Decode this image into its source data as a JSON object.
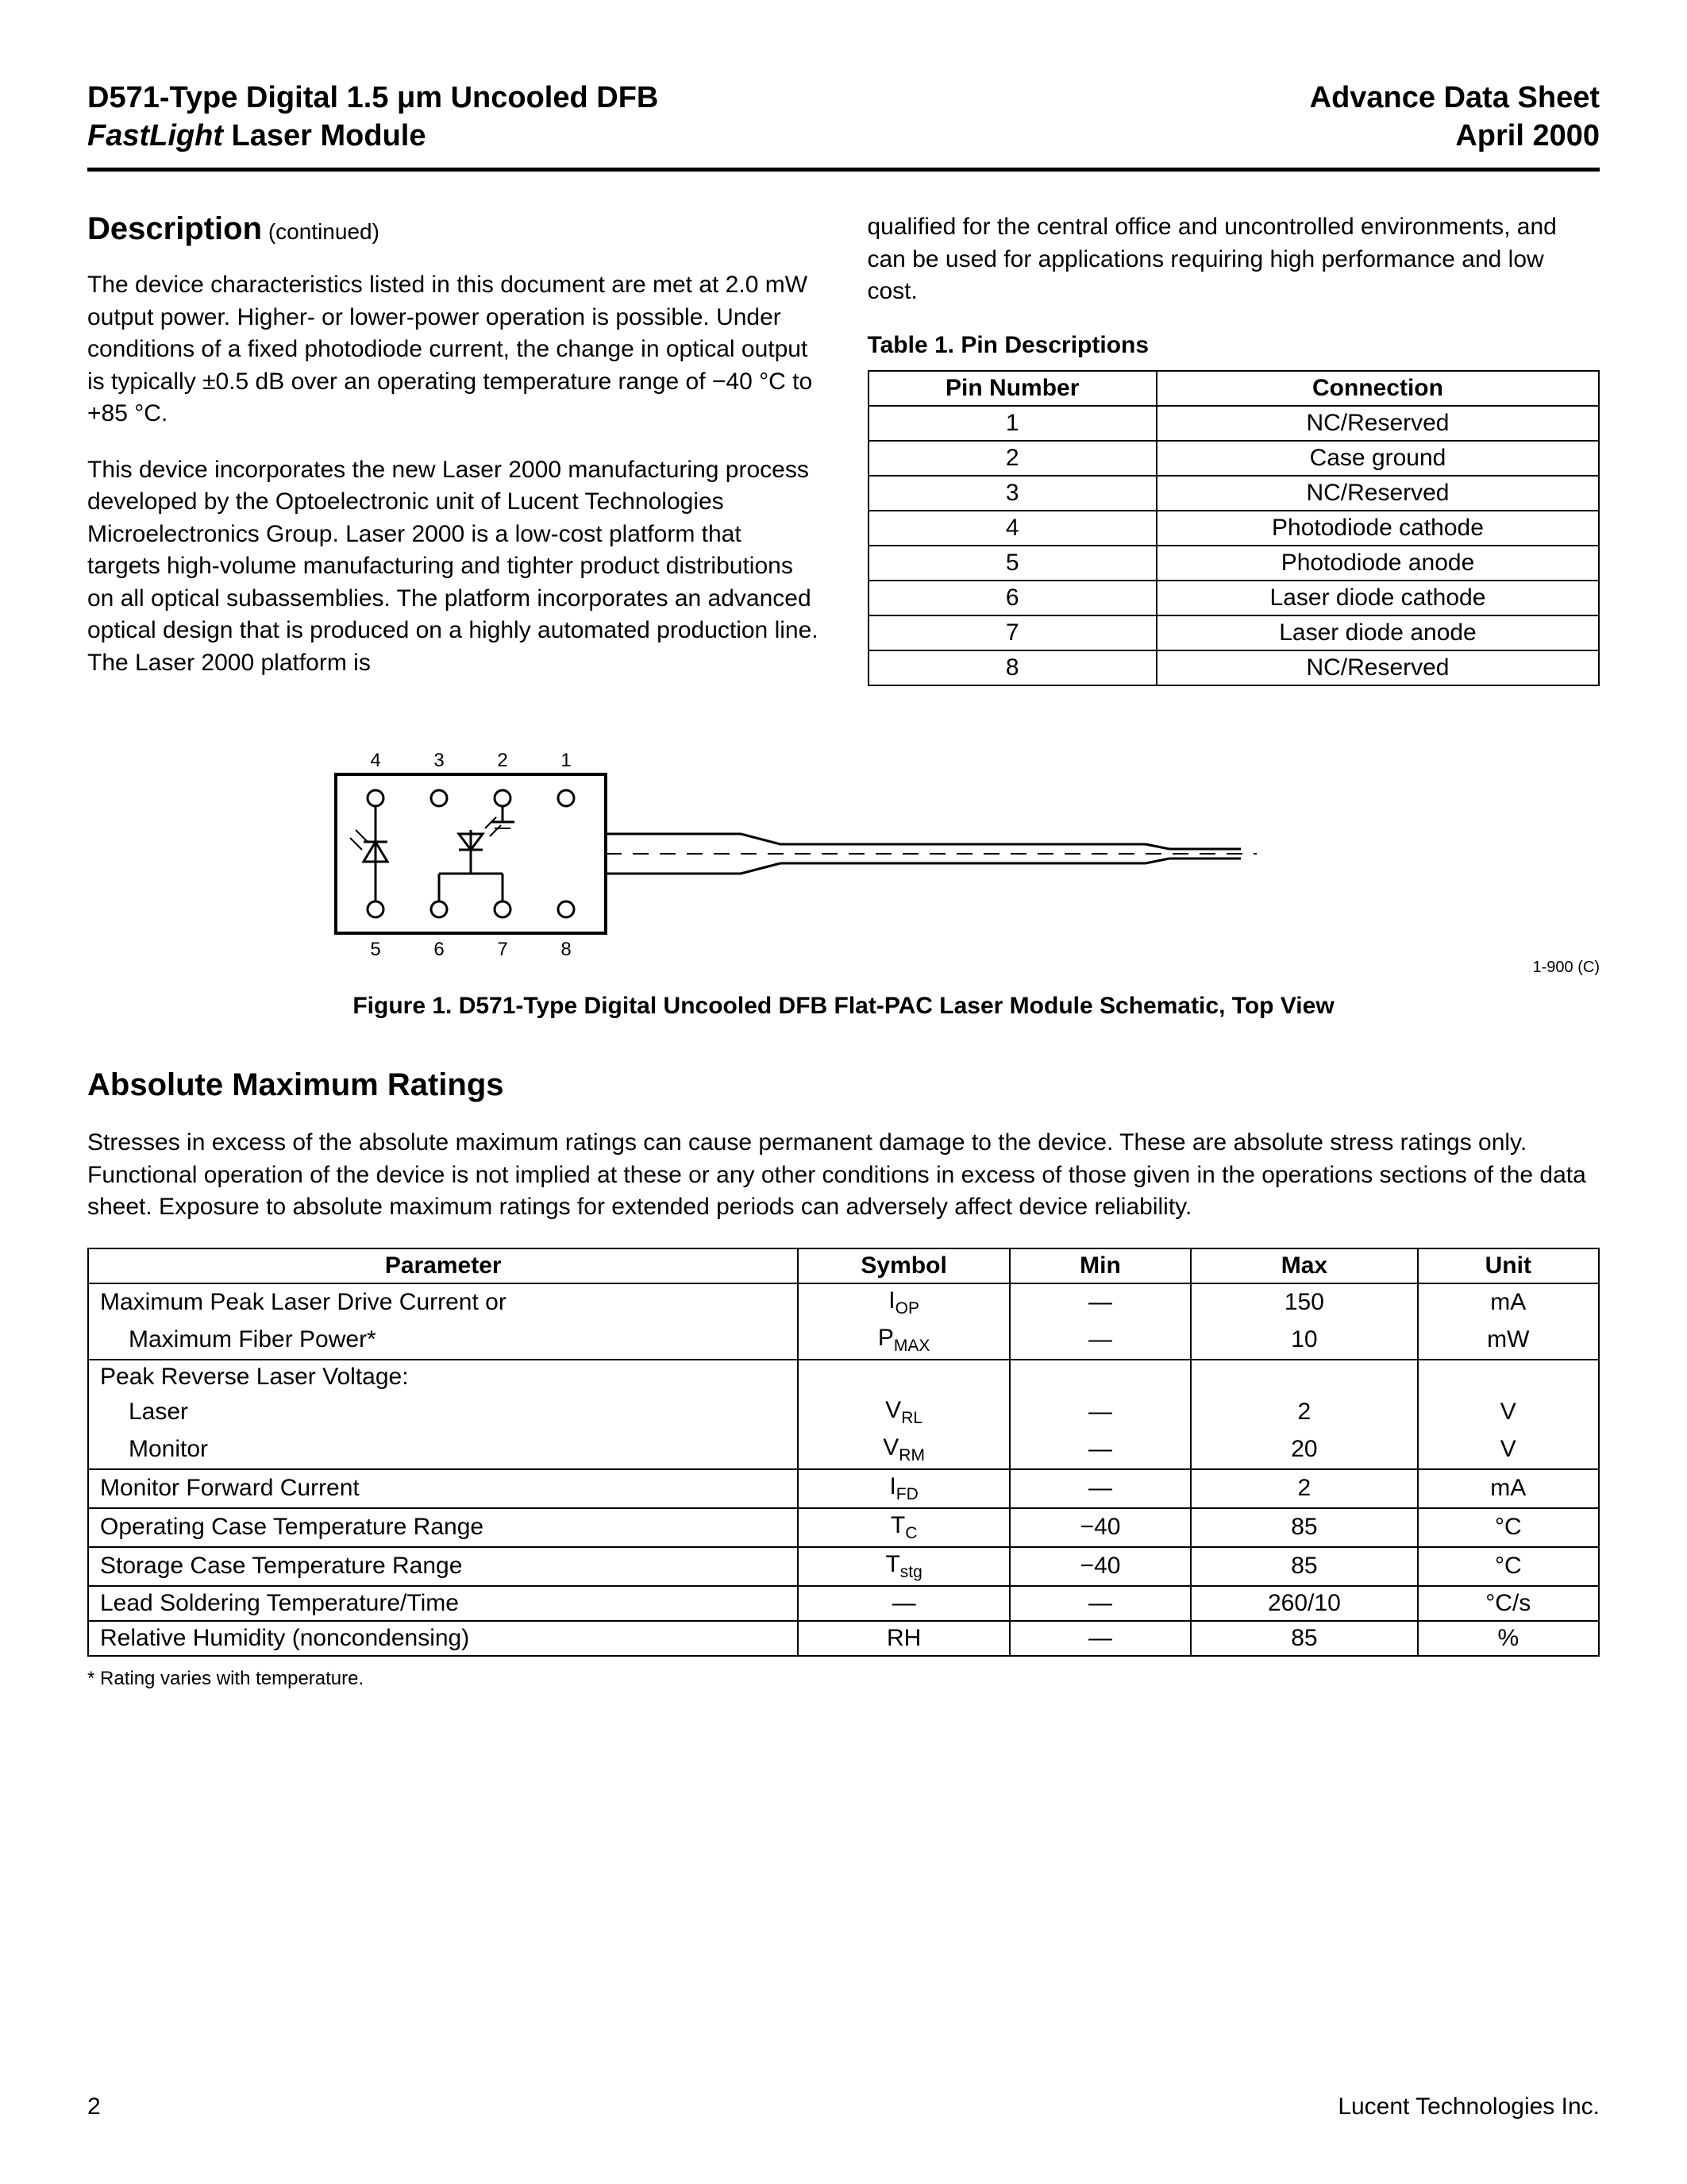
{
  "header": {
    "left_line1_a": "D571-Type Digital 1.5 ",
    "left_line1_b": "μm Uncooled DFB",
    "left_line2_a": "FastLight",
    "left_line2_b": " Laser Module",
    "right_line1": "Advance Data Sheet",
    "right_line2": "April 2000"
  },
  "description": {
    "title": "Description",
    "continued": " (continued)",
    "para1": "The device characteristics listed in this document are met at 2.0 mW output power. Higher- or lower-power operation is possible. Under conditions of a fixed photodiode current, the change in optical output is typically ±0.5 dB over an operating temperature range of −40 °C to +85 °C.",
    "para2": "This device incorporates the new Laser 2000 manufacturing process developed by the Optoelectronic unit of Lucent Technologies Microelectronics Group. Laser 2000 is a low-cost platform that targets high-volume manufacturing and tighter product distributions on all optical subassemblies. The platform incorporates an advanced optical design that is produced on a highly automated production line. The Laser 2000 platform is",
    "para_right": "qualified for the central office and uncontrolled environments, and can be used for applications requiring high performance and low cost."
  },
  "table1": {
    "caption": "Table 1. Pin Descriptions",
    "head_pin": "Pin Number",
    "head_conn": "Connection",
    "rows": [
      {
        "pin": "1",
        "conn": "NC/Reserved"
      },
      {
        "pin": "2",
        "conn": "Case ground"
      },
      {
        "pin": "3",
        "conn": "NC/Reserved"
      },
      {
        "pin": "4",
        "conn": "Photodiode cathode"
      },
      {
        "pin": "5",
        "conn": "Photodiode anode"
      },
      {
        "pin": "6",
        "conn": "Laser diode cathode"
      },
      {
        "pin": "7",
        "conn": "Laser diode anode"
      },
      {
        "pin": "8",
        "conn": "NC/Reserved"
      }
    ]
  },
  "figure": {
    "pins_top": [
      "4",
      "3",
      "2",
      "1"
    ],
    "pins_bottom": [
      "5",
      "6",
      "7",
      "8"
    ],
    "caption": "Figure 1. D571-Type Digital Uncooled DFB Flat-PAC Laser Module Schematic, Top View",
    "ref": "1-900 (C)"
  },
  "amr": {
    "title": "Absolute Maximum Ratings",
    "intro": "Stresses in excess of the absolute maximum ratings can cause permanent damage to the device. These are absolute stress ratings only. Functional operation of the device is not implied at these or any other conditions in excess of those given in the operations sections of the data sheet. Exposure to absolute maximum ratings for extended periods can adversely affect device reliability.",
    "head": {
      "param": "Parameter",
      "symbol": "Symbol",
      "min": "Min",
      "max": "Max",
      "unit": "Unit"
    },
    "rows": [
      {
        "group": [
          {
            "param": "Maximum Peak Laser Drive Current or",
            "symbol_pre": "I",
            "symbol_sub": "OP",
            "min": "—",
            "max": "150",
            "unit": "mA",
            "indent": false
          },
          {
            "param": "Maximum Fiber Power*",
            "symbol_pre": "P",
            "symbol_sub": "MAX",
            "min": "—",
            "max": "10",
            "unit": "mW",
            "indent": true
          }
        ]
      },
      {
        "group": [
          {
            "param": "Peak Reverse Laser Voltage:",
            "symbol_pre": "",
            "symbol_sub": "",
            "min": "",
            "max": "",
            "unit": "",
            "indent": false
          },
          {
            "param": "Laser",
            "symbol_pre": "V",
            "symbol_sub": "RL",
            "min": "—",
            "max": "2",
            "unit": "V",
            "indent": true
          },
          {
            "param": "Monitor",
            "symbol_pre": "V",
            "symbol_sub": "RM",
            "min": "—",
            "max": "20",
            "unit": "V",
            "indent": true
          }
        ]
      },
      {
        "group": [
          {
            "param": "Monitor Forward Current",
            "symbol_pre": "I",
            "symbol_sub": "FD",
            "min": "—",
            "max": "2",
            "unit": "mA",
            "indent": false
          }
        ]
      },
      {
        "group": [
          {
            "param": "Operating Case Temperature Range",
            "symbol_pre": "T",
            "symbol_sub": "C",
            "min": "−40",
            "max": "85",
            "unit": "°C",
            "indent": false
          }
        ]
      },
      {
        "group": [
          {
            "param": "Storage Case Temperature Range",
            "symbol_pre": "T",
            "symbol_sub": "stg",
            "min": "−40",
            "max": "85",
            "unit": "°C",
            "indent": false
          }
        ]
      },
      {
        "group": [
          {
            "param": "Lead Soldering Temperature/Time",
            "symbol_pre": "—",
            "symbol_sub": "",
            "min": "—",
            "max": "260/10",
            "unit": "°C/s",
            "indent": false
          }
        ]
      },
      {
        "group": [
          {
            "param": "Relative Humidity (noncondensing)",
            "symbol_pre": "RH",
            "symbol_sub": "",
            "min": "—",
            "max": "85",
            "unit": "%",
            "indent": false
          }
        ]
      }
    ],
    "footnote": "* Rating varies with temperature."
  },
  "footer": {
    "page": "2",
    "company": "Lucent Technologies Inc."
  },
  "colors": {
    "text": "#000000",
    "bg": "#ffffff",
    "rule": "#000000"
  }
}
